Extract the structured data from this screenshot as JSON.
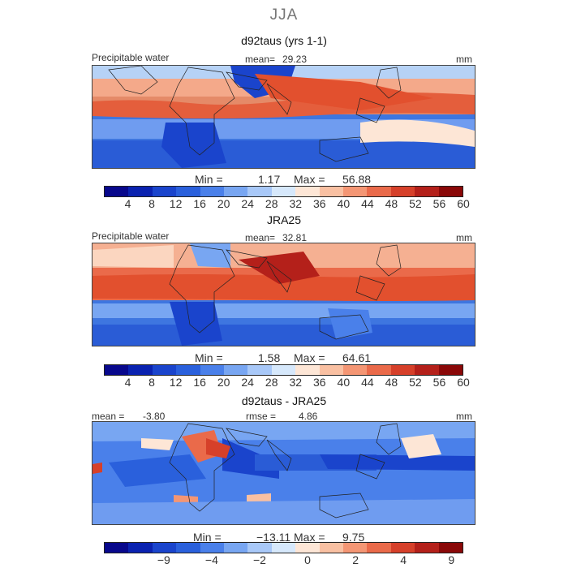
{
  "season": "JJA",
  "units": "mm",
  "panels": [
    {
      "title": "d92taus (yrs 1-1)",
      "field": "Precipitable water",
      "mean_label": "mean=",
      "mean": "29.23",
      "min_label": "Min =",
      "min": "1.17",
      "max_label": "Max =",
      "max": "56.88"
    },
    {
      "title": "JRA25",
      "field": "Precipitable water",
      "mean_label": "mean=",
      "mean": "32.81",
      "min_label": "Min =",
      "min": "1.58",
      "max_label": "Max =",
      "max": "64.61"
    },
    {
      "title": "d92taus - JRA25",
      "mean_label": "mean =",
      "mean": "-3.80",
      "rmse_label": "rmse =",
      "rmse": "4.86",
      "min_label": "Min =",
      "min": "−13.11",
      "max_label": "Max =",
      "max": "9.75"
    }
  ],
  "colorbar_colors": [
    "#08088c",
    "#0a22b0",
    "#1a44cc",
    "#2a60dc",
    "#4a80ea",
    "#78a6f2",
    "#a8c8f8",
    "#d6e8fb",
    "#fde6d6",
    "#f9c0a2",
    "#f49674",
    "#ea6a4a",
    "#d6402a",
    "#b4201a",
    "#8a0808"
  ],
  "chart_data": [
    {
      "type": "heatmap",
      "title": "d92taus (yrs 1-1)",
      "variable": "Precipitable water",
      "units": "mm",
      "colorbar_ticks": [
        4,
        8,
        12,
        16,
        20,
        24,
        28,
        32,
        36,
        40,
        44,
        48,
        52,
        56,
        60
      ],
      "mean": 29.23,
      "min": 1.17,
      "max": 56.88
    },
    {
      "type": "heatmap",
      "title": "JRA25",
      "variable": "Precipitable water",
      "units": "mm",
      "colorbar_ticks": [
        4,
        8,
        12,
        16,
        20,
        24,
        28,
        32,
        36,
        40,
        44,
        48,
        52,
        56,
        60
      ],
      "mean": 32.81,
      "min": 1.58,
      "max": 64.61
    },
    {
      "type": "heatmap",
      "title": "d92taus - JRA25",
      "units": "mm",
      "colorbar_ticks": [
        "−9",
        "−4",
        "−2",
        "0",
        "2",
        "4",
        "9"
      ],
      "mean": -3.8,
      "rmse": 4.86,
      "min": -13.11,
      "max": 9.75
    }
  ]
}
